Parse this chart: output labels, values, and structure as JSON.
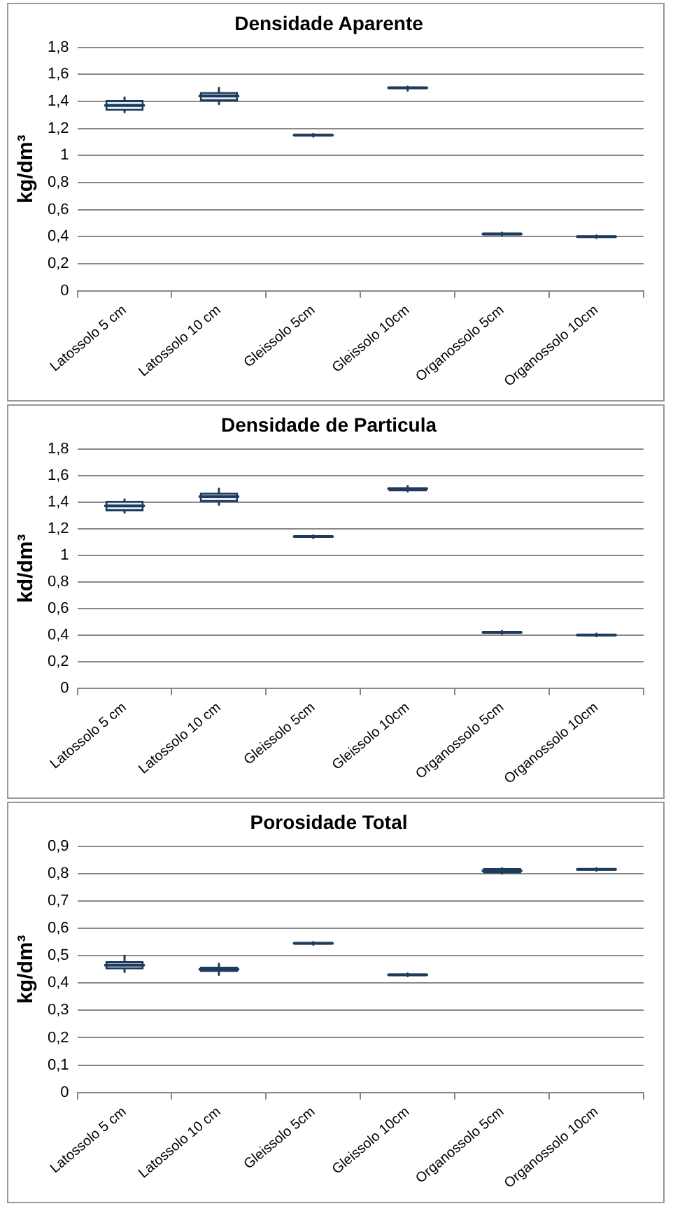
{
  "chart_data": [
    {
      "type": "box",
      "title": "Densidade Aparente",
      "ylabel": "kg/dm³",
      "categories": [
        "Latossolo 5 cm",
        "Latossolo 10 cm",
        "Gleissolo 5cm",
        "Gleissolo 10cm",
        "Organossolo 5cm",
        "Organossolo 10cm"
      ],
      "color": "#1f3b5c",
      "grid": "y",
      "legend": false,
      "ylim": [
        0,
        1.8
      ],
      "yticks": [
        {
          "value": 0,
          "label": "0"
        },
        {
          "value": 0.2,
          "label": "0,2"
        },
        {
          "value": 0.4,
          "label": "0,4"
        },
        {
          "value": 0.6,
          "label": "0,6"
        },
        {
          "value": 0.8,
          "label": "0,8"
        },
        {
          "value": 1,
          "label": "1"
        },
        {
          "value": 1.2,
          "label": "1,2"
        },
        {
          "value": 1.4,
          "label": "1,4"
        },
        {
          "value": 1.6,
          "label": "1,6"
        },
        {
          "value": 1.8,
          "label": "1,8"
        }
      ],
      "boxes": [
        {
          "low": 1.32,
          "q1": 1.33,
          "median": 1.37,
          "q3": 1.41,
          "high": 1.43
        },
        {
          "low": 1.38,
          "q1": 1.4,
          "median": 1.44,
          "q3": 1.47,
          "high": 1.5
        },
        {
          "low": 1.14,
          "q1": 1.14,
          "median": 1.15,
          "q3": 1.16,
          "high": 1.16
        },
        {
          "low": 1.48,
          "q1": 1.49,
          "median": 1.5,
          "q3": 1.51,
          "high": 1.51
        },
        {
          "low": 0.41,
          "q1": 0.41,
          "median": 0.42,
          "q3": 0.43,
          "high": 0.43
        },
        {
          "low": 0.39,
          "q1": 0.39,
          "median": 0.4,
          "q3": 0.41,
          "high": 0.41
        }
      ]
    },
    {
      "type": "box",
      "title": "Densidade de Particula",
      "ylabel": "kd/dm³",
      "categories": [
        "Latossolo 5 cm",
        "Latossolo 10 cm",
        "Gleissolo 5cm",
        "Gleissolo 10cm",
        "Organossolo 5cm",
        "Organossolo 10cm"
      ],
      "color": "#1f3b5c",
      "grid": "y",
      "legend": false,
      "ylim": [
        0,
        1.8
      ],
      "yticks": [
        {
          "value": 0,
          "label": "0"
        },
        {
          "value": 0.2,
          "label": "0,2"
        },
        {
          "value": 0.4,
          "label": "0,4"
        },
        {
          "value": 0.6,
          "label": "0,6"
        },
        {
          "value": 0.8,
          "label": "0,8"
        },
        {
          "value": 1,
          "label": "1"
        },
        {
          "value": 1.2,
          "label": "1,2"
        },
        {
          "value": 1.4,
          "label": "1,4"
        },
        {
          "value": 1.6,
          "label": "1,6"
        },
        {
          "value": 1.8,
          "label": "1,8"
        }
      ],
      "boxes": [
        {
          "low": 1.32,
          "q1": 1.33,
          "median": 1.37,
          "q3": 1.41,
          "high": 1.42
        },
        {
          "low": 1.38,
          "q1": 1.4,
          "median": 1.44,
          "q3": 1.47,
          "high": 1.5
        },
        {
          "low": 1.13,
          "q1": 1.13,
          "median": 1.14,
          "q3": 1.15,
          "high": 1.15
        },
        {
          "low": 1.48,
          "q1": 1.48,
          "median": 1.5,
          "q3": 1.51,
          "high": 1.52
        },
        {
          "low": 0.41,
          "q1": 0.41,
          "median": 0.42,
          "q3": 0.43,
          "high": 0.43
        },
        {
          "low": 0.39,
          "q1": 0.39,
          "median": 0.4,
          "q3": 0.4,
          "high": 0.41
        }
      ]
    },
    {
      "type": "box",
      "title": "Porosidade Total",
      "ylabel": "kg/dm³",
      "categories": [
        "Latossolo 5 cm",
        "Latossolo 10 cm",
        "Gleissolo 5cm",
        "Gleissolo 10cm",
        "Organossolo 5cm",
        "Organossolo 10cm"
      ],
      "color": "#1f3b5c",
      "grid": "y",
      "legend": false,
      "ylim": [
        0,
        0.9
      ],
      "yticks": [
        {
          "value": 0,
          "label": "0"
        },
        {
          "value": 0.1,
          "label": "0,1"
        },
        {
          "value": 0.2,
          "label": "0,2"
        },
        {
          "value": 0.3,
          "label": "0,3"
        },
        {
          "value": 0.4,
          "label": "0,4"
        },
        {
          "value": 0.5,
          "label": "0,5"
        },
        {
          "value": 0.6,
          "label": "0,6"
        },
        {
          "value": 0.7,
          "label": "0,7"
        },
        {
          "value": 0.8,
          "label": "0,8"
        },
        {
          "value": 0.9,
          "label": "0,9"
        }
      ],
      "boxes": [
        {
          "low": 0.44,
          "q1": 0.45,
          "median": 0.465,
          "q3": 0.48,
          "high": 0.5
        },
        {
          "low": 0.43,
          "q1": 0.44,
          "median": 0.45,
          "q3": 0.46,
          "high": 0.47
        },
        {
          "low": 0.54,
          "q1": 0.54,
          "median": 0.545,
          "q3": 0.55,
          "high": 0.55
        },
        {
          "low": 0.425,
          "q1": 0.425,
          "median": 0.43,
          "q3": 0.435,
          "high": 0.435
        },
        {
          "low": 0.8,
          "q1": 0.8,
          "median": 0.81,
          "q3": 0.82,
          "high": 0.82
        },
        {
          "low": 0.81,
          "q1": 0.81,
          "median": 0.815,
          "q3": 0.82,
          "high": 0.82
        }
      ]
    }
  ]
}
